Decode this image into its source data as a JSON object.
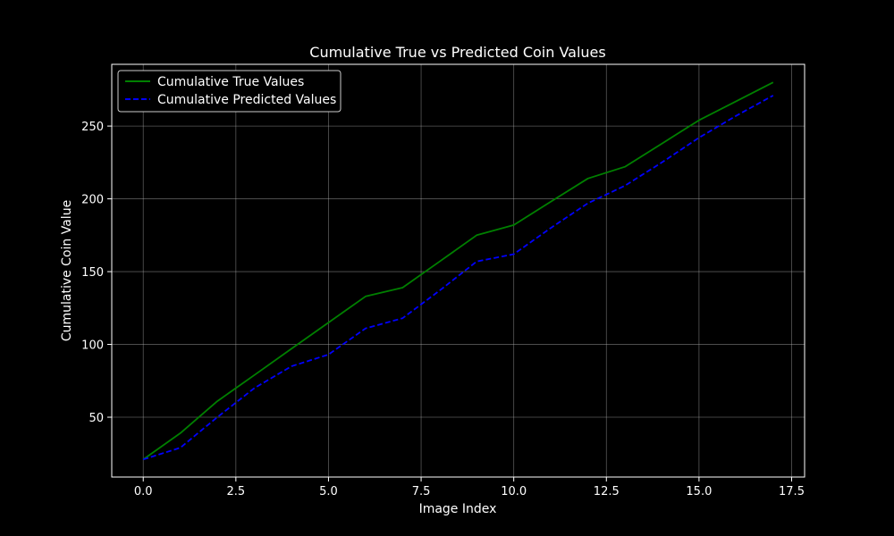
{
  "chart_data": {
    "type": "line",
    "title": "Cumulative True vs Predicted Coin Values",
    "xlabel": "Image Index",
    "ylabel": "Cumulative Coin Value",
    "xlim": [
      -0.85,
      17.85
    ],
    "ylim": [
      8.9,
      292.4
    ],
    "xticks": [
      0.0,
      2.5,
      5.0,
      7.5,
      10.0,
      12.5,
      15.0,
      17.5
    ],
    "xtick_labels": [
      "0.0",
      "2.5",
      "5.0",
      "7.5",
      "10.0",
      "12.5",
      "15.0",
      "17.5"
    ],
    "yticks": [
      50,
      100,
      150,
      200,
      250
    ],
    "ytick_labels": [
      "50",
      "100",
      "150",
      "200",
      "250"
    ],
    "grid": true,
    "legend_position": "top-left",
    "x": [
      0,
      1,
      2,
      3,
      4,
      5,
      6,
      7,
      8,
      9,
      10,
      11,
      12,
      13,
      14,
      15,
      16,
      17
    ],
    "series": [
      {
        "name": "Cumulative True Values",
        "color": "#008000",
        "style": "solid",
        "values": [
          21,
          39,
          61,
          79,
          97,
          115,
          133,
          139,
          157,
          175,
          182,
          198,
          214,
          222,
          238,
          254,
          267,
          280
        ]
      },
      {
        "name": "Cumulative Predicted Values",
        "color": "#0000ff",
        "style": "dashed",
        "values": [
          21,
          29,
          50,
          70,
          85,
          93,
          111,
          118,
          137,
          157,
          162,
          180,
          197,
          209,
          225,
          242,
          257,
          271
        ]
      }
    ]
  }
}
